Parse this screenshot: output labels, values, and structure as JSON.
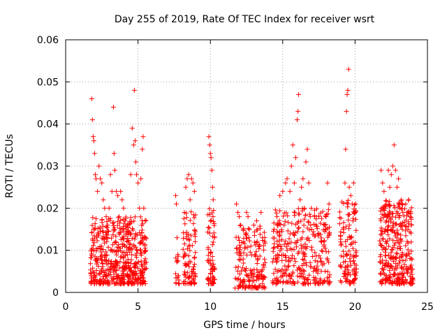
{
  "chart_data": {
    "type": "scatter",
    "title": "Day 255 of 2019, Rate Of TEC Index for receiver wsrt",
    "xlabel": "GPS time / hours",
    "ylabel": "ROTI / TECUs",
    "xlim": [
      0,
      25
    ],
    "ylim": [
      0,
      0.06
    ],
    "xticks": [
      0,
      5,
      10,
      15,
      20,
      25
    ],
    "yticks": [
      0,
      0.01,
      0.02,
      0.03,
      0.04,
      0.05,
      0.06
    ],
    "grid": true,
    "marker": "plus",
    "color": "#ff0000",
    "points": [
      [
        1.8,
        0.046
      ],
      [
        1.85,
        0.041
      ],
      [
        1.9,
        0.037
      ],
      [
        1.95,
        0.036
      ],
      [
        2.0,
        0.033
      ],
      [
        2.05,
        0.028
      ],
      [
        2.1,
        0.027
      ],
      [
        2.2,
        0.024
      ],
      [
        2.3,
        0.03
      ],
      [
        2.4,
        0.027
      ],
      [
        2.5,
        0.026
      ],
      [
        2.6,
        0.022
      ],
      [
        2.7,
        0.02
      ],
      [
        2.8,
        0.018
      ],
      [
        2.9,
        0.016
      ],
      [
        3.0,
        0.02
      ],
      [
        3.1,
        0.028
      ],
      [
        3.2,
        0.024
      ],
      [
        3.3,
        0.044
      ],
      [
        3.35,
        0.033
      ],
      [
        3.4,
        0.029
      ],
      [
        3.5,
        0.024
      ],
      [
        3.6,
        0.023
      ],
      [
        3.7,
        0.018
      ],
      [
        3.8,
        0.024
      ],
      [
        3.9,
        0.022
      ],
      [
        4.0,
        0.02
      ],
      [
        4.1,
        0.017
      ],
      [
        4.2,
        0.015
      ],
      [
        4.3,
        0.012
      ],
      [
        4.5,
        0.028
      ],
      [
        4.6,
        0.039
      ],
      [
        4.7,
        0.035
      ],
      [
        4.75,
        0.048
      ],
      [
        4.8,
        0.036
      ],
      [
        4.85,
        0.031
      ],
      [
        4.9,
        0.028
      ],
      [
        5.0,
        0.026
      ],
      [
        5.1,
        0.02
      ],
      [
        5.2,
        0.027
      ],
      [
        5.3,
        0.034
      ],
      [
        5.35,
        0.037
      ],
      [
        5.4,
        0.02
      ],
      [
        5.45,
        0.013
      ],
      [
        5.5,
        0.008
      ],
      [
        7.6,
        0.023
      ],
      [
        7.65,
        0.021
      ],
      [
        7.7,
        0.013
      ],
      [
        7.75,
        0.009
      ],
      [
        7.8,
        0.004
      ],
      [
        7.85,
        0.002
      ],
      [
        8.2,
        0.019
      ],
      [
        8.3,
        0.025
      ],
      [
        8.4,
        0.027
      ],
      [
        8.5,
        0.028
      ],
      [
        8.6,
        0.022
      ],
      [
        8.7,
        0.027
      ],
      [
        8.8,
        0.026
      ],
      [
        8.9,
        0.024
      ],
      [
        9.9,
        0.037
      ],
      [
        9.95,
        0.035
      ],
      [
        10.0,
        0.033
      ],
      [
        10.05,
        0.032
      ],
      [
        10.1,
        0.029
      ],
      [
        10.15,
        0.025
      ],
      [
        10.2,
        0.022
      ],
      [
        11.8,
        0.021
      ],
      [
        11.9,
        0.019
      ],
      [
        12.0,
        0.018
      ],
      [
        12.1,
        0.016
      ],
      [
        12.3,
        0.012
      ],
      [
        12.5,
        0.019
      ],
      [
        12.6,
        0.018
      ],
      [
        12.7,
        0.015
      ],
      [
        12.8,
        0.011
      ],
      [
        13.0,
        0.016
      ],
      [
        13.2,
        0.017
      ],
      [
        13.5,
        0.019
      ],
      [
        13.6,
        0.013
      ],
      [
        13.7,
        0.006
      ],
      [
        14.4,
        0.015
      ],
      [
        14.6,
        0.018
      ],
      [
        14.8,
        0.023
      ],
      [
        15.0,
        0.024
      ],
      [
        15.2,
        0.026
      ],
      [
        15.3,
        0.027
      ],
      [
        15.5,
        0.024
      ],
      [
        15.6,
        0.03
      ],
      [
        15.7,
        0.035
      ],
      [
        15.8,
        0.026
      ],
      [
        15.9,
        0.032
      ],
      [
        16.0,
        0.041
      ],
      [
        16.05,
        0.043
      ],
      [
        16.1,
        0.047
      ],
      [
        16.2,
        0.022
      ],
      [
        16.3,
        0.025
      ],
      [
        16.4,
        0.027
      ],
      [
        16.5,
        0.02
      ],
      [
        16.6,
        0.031
      ],
      [
        16.7,
        0.034
      ],
      [
        16.8,
        0.026
      ],
      [
        16.9,
        0.018
      ],
      [
        17.0,
        0.015
      ],
      [
        17.2,
        0.018
      ],
      [
        17.5,
        0.014
      ],
      [
        17.7,
        0.01
      ],
      [
        17.9,
        0.016
      ],
      [
        18.0,
        0.018
      ],
      [
        18.1,
        0.026
      ],
      [
        18.2,
        0.021
      ],
      [
        19.0,
        0.012
      ],
      [
        19.2,
        0.015
      ],
      [
        19.3,
        0.026
      ],
      [
        19.35,
        0.034
      ],
      [
        19.4,
        0.043
      ],
      [
        19.45,
        0.047
      ],
      [
        19.5,
        0.048
      ],
      [
        19.55,
        0.053
      ],
      [
        19.6,
        0.025
      ],
      [
        19.7,
        0.023
      ],
      [
        19.8,
        0.021
      ],
      [
        19.9,
        0.026
      ],
      [
        20.0,
        0.019
      ],
      [
        21.8,
        0.029
      ],
      [
        21.9,
        0.026
      ],
      [
        22.0,
        0.024
      ],
      [
        22.1,
        0.02
      ],
      [
        22.2,
        0.018
      ],
      [
        22.3,
        0.029
      ],
      [
        22.4,
        0.025
      ],
      [
        22.5,
        0.028
      ],
      [
        22.6,
        0.03
      ],
      [
        22.7,
        0.035
      ],
      [
        22.8,
        0.029
      ],
      [
        22.9,
        0.025
      ],
      [
        23.0,
        0.027
      ],
      [
        23.1,
        0.02
      ],
      [
        23.2,
        0.022
      ],
      [
        23.3,
        0.019
      ],
      [
        23.4,
        0.016
      ],
      [
        23.5,
        0.021
      ],
      [
        23.6,
        0.019
      ],
      [
        23.7,
        0.022
      ],
      [
        23.8,
        0.018
      ],
      [
        23.9,
        0.016
      ]
    ],
    "clusters": [
      {
        "x": [
          1.7,
          5.6
        ],
        "y": [
          0.002,
          0.018
        ],
        "count": 520
      },
      {
        "x": [
          7.6,
          7.9
        ],
        "y": [
          0.002,
          0.009
        ],
        "count": 12
      },
      {
        "x": [
          8.1,
          9.0
        ],
        "y": [
          0.002,
          0.02
        ],
        "count": 90
      },
      {
        "x": [
          9.8,
          10.3
        ],
        "y": [
          0.002,
          0.02
        ],
        "count": 70
      },
      {
        "x": [
          11.7,
          13.8
        ],
        "y": [
          0.001,
          0.016
        ],
        "count": 170
      },
      {
        "x": [
          14.3,
          18.3
        ],
        "y": [
          0.002,
          0.02
        ],
        "count": 330
      },
      {
        "x": [
          18.9,
          20.1
        ],
        "y": [
          0.002,
          0.022
        ],
        "count": 120
      },
      {
        "x": [
          21.7,
          24.0
        ],
        "y": [
          0.002,
          0.022
        ],
        "count": 330
      }
    ]
  }
}
